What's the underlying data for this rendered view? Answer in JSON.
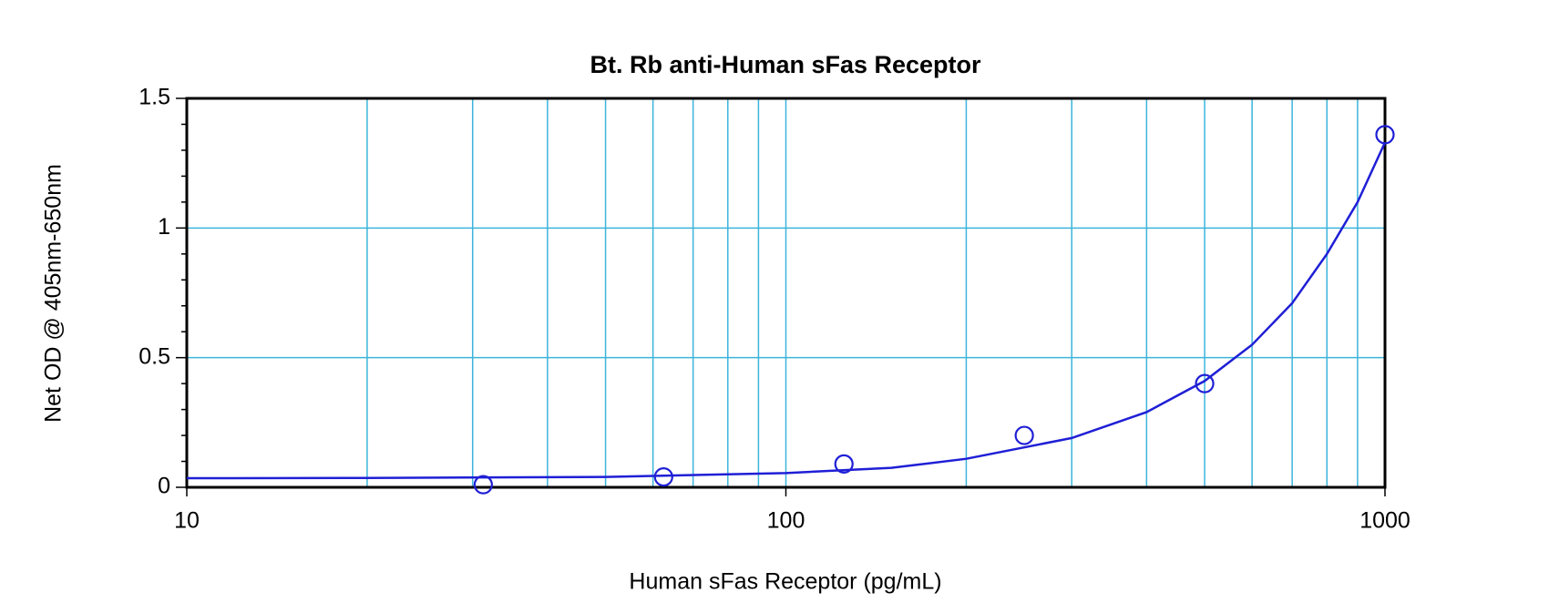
{
  "chart_data": {
    "type": "scatter",
    "title": "Bt. Rb anti-Human sFas Receptor",
    "x_label": "Human sFas Receptor (pg/mL)",
    "y_label": "Net OD @ 405nm-650nm",
    "x_scale": "log",
    "xlim": [
      10,
      1000
    ],
    "xticks": [
      10,
      100,
      1000
    ],
    "x_minor_grid": [
      20,
      30,
      40,
      50,
      60,
      70,
      80,
      90,
      200,
      300,
      400,
      500,
      600,
      700,
      800,
      900
    ],
    "ylim": [
      0,
      1.5
    ],
    "yticks": [
      0,
      0.5,
      1,
      1.5
    ],
    "y_minor_ticks": [
      0.1,
      0.2,
      0.3,
      0.4,
      0.6,
      0.7,
      0.8,
      0.9,
      1.1,
      1.2,
      1.3,
      1.4
    ],
    "grid": true,
    "grid_color": "#3cb4dc",
    "color": "#1f1fd6",
    "x": [
      31.25,
      62.5,
      125,
      250,
      500,
      1000
    ],
    "values": [
      0.01,
      0.04,
      0.09,
      0.2,
      0.4,
      1.36
    ],
    "fit": {
      "x": [
        10,
        20,
        50,
        100,
        150,
        200,
        300,
        400,
        500,
        600,
        700,
        800,
        900,
        1000
      ],
      "values": [
        0.035,
        0.036,
        0.04,
        0.055,
        0.075,
        0.11,
        0.19,
        0.29,
        0.41,
        0.55,
        0.71,
        0.9,
        1.1,
        1.33
      ]
    }
  }
}
